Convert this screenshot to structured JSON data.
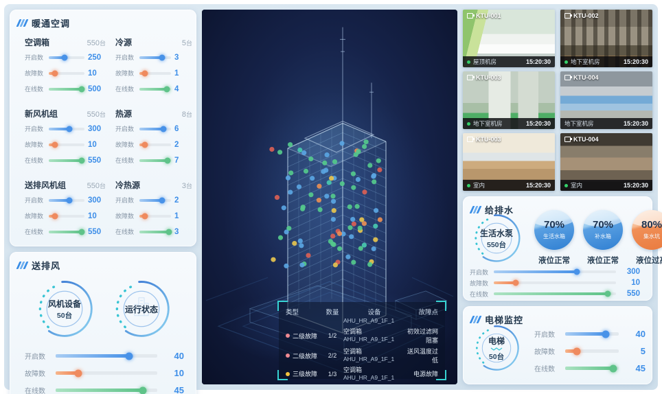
{
  "theme": {
    "accent": "#3a8ee6",
    "orange": "#ef8a5e",
    "green": "#5fc389",
    "teal": "#37d3d3",
    "value_blue": "#3d8ee8"
  },
  "hvac": {
    "title": "暖通空调",
    "unit": "台",
    "groups": [
      {
        "name": "空调箱",
        "total": "550",
        "sliders": [
          {
            "label": "开启数",
            "value": "250",
            "pct": 45,
            "type": "open"
          },
          {
            "label": "故障数",
            "value": "10",
            "pct": 18,
            "type": "fault"
          },
          {
            "label": "在线数",
            "value": "500",
            "pct": 93,
            "type": "online"
          }
        ]
      },
      {
        "name": "冷源",
        "total": "5",
        "sliders": [
          {
            "label": "开启数",
            "value": "3",
            "pct": 72,
            "type": "open"
          },
          {
            "label": "故障数",
            "value": "1",
            "pct": 18,
            "type": "fault"
          },
          {
            "label": "在线数",
            "value": "4",
            "pct": 86,
            "type": "online"
          }
        ]
      },
      {
        "name": "新风机组",
        "total": "550",
        "sliders": [
          {
            "label": "开启数",
            "value": "300",
            "pct": 58,
            "type": "open"
          },
          {
            "label": "故障数",
            "value": "10",
            "pct": 18,
            "type": "fault"
          },
          {
            "label": "在线数",
            "value": "550",
            "pct": 93,
            "type": "online"
          }
        ]
      },
      {
        "name": "热源",
        "total": "8",
        "sliders": [
          {
            "label": "开启数",
            "value": "6",
            "pct": 76,
            "type": "open"
          },
          {
            "label": "故障数",
            "value": "2",
            "pct": 18,
            "type": "fault"
          },
          {
            "label": "在线数",
            "value": "7",
            "pct": 90,
            "type": "online"
          }
        ]
      },
      {
        "name": "送排风机组",
        "total": "550",
        "sliders": [
          {
            "label": "开启数",
            "value": "300",
            "pct": 58,
            "type": "open"
          },
          {
            "label": "故障数",
            "value": "10",
            "pct": 18,
            "type": "fault"
          },
          {
            "label": "在线数",
            "value": "550",
            "pct": 93,
            "type": "online"
          }
        ]
      },
      {
        "name": "冷热源",
        "total": "3",
        "sliders": [
          {
            "label": "开启数",
            "value": "2",
            "pct": 72,
            "type": "open"
          },
          {
            "label": "故障数",
            "value": "1",
            "pct": 18,
            "type": "fault"
          },
          {
            "label": "在线数",
            "value": "3",
            "pct": 93,
            "type": "online"
          }
        ]
      }
    ]
  },
  "fans": {
    "title": "送排风",
    "gauges": [
      {
        "label": "风机设备",
        "sub": "50台"
      },
      {
        "label": "运行状态",
        "sub": ""
      }
    ],
    "sliders": [
      {
        "label": "开启数",
        "value": "40",
        "pct": 72,
        "type": "open"
      },
      {
        "label": "故障数",
        "value": "10",
        "pct": 22,
        "type": "fault"
      },
      {
        "label": "在线数",
        "value": "45",
        "pct": 86,
        "type": "online"
      }
    ]
  },
  "alarms": {
    "headers": [
      "类型",
      "数量",
      "设备",
      "故障点"
    ],
    "partial_device_id": "AHU_HR_A9_1F_1",
    "rows": [
      {
        "level": "二级故障",
        "dot": "#ef8a92",
        "qty": "1/2",
        "device": "空调箱",
        "device_id": "AHU_HR_A9_1F_1",
        "fault": "初效过滤网阻塞"
      },
      {
        "level": "二级故障",
        "dot": "#ef8a92",
        "qty": "2/2",
        "device": "空调箱",
        "device_id": "AHU_HR_A9_1F_1",
        "fault": "送风温度过低"
      },
      {
        "level": "三级故障",
        "dot": "#f2c23e",
        "qty": "1/3",
        "device": "空调箱",
        "device_id": "AHU_HR_A9_1F_1",
        "fault": "电源故障"
      }
    ]
  },
  "cameras": [
    {
      "id": "KTU-001",
      "location": "屋顶机房",
      "time": "15:20:30",
      "online": true
    },
    {
      "id": "KTU-002",
      "location": "地下室机房",
      "time": "15:20:30",
      "online": true
    },
    {
      "id": "KTU-003",
      "location": "地下室机房",
      "time": "15:20:30",
      "online": true
    },
    {
      "id": "KTU-004",
      "location": "地下室机房",
      "time": "15:20:30",
      "online": false
    },
    {
      "id": "KTU-003",
      "location": "室内",
      "time": "15:20:30",
      "online": true
    },
    {
      "id": "KTU-004",
      "location": "室内",
      "time": "15:20:30",
      "online": true
    }
  ],
  "water": {
    "title": "给排水",
    "gauge": {
      "label": "生活水泵",
      "sub": "550台"
    },
    "tanks": [
      {
        "pct": "70%",
        "name": "生活水箱",
        "status": "液位正常",
        "color": "blue"
      },
      {
        "pct": "70%",
        "name": "补水箱",
        "status": "液位正常",
        "color": "blue"
      },
      {
        "pct": "80%",
        "name": "集水坑",
        "status": "液位过高",
        "color": "orange"
      }
    ],
    "sliders": [
      {
        "label": "开启数",
        "value": "300",
        "pct": 68,
        "type": "open"
      },
      {
        "label": "故障数",
        "value": "10",
        "pct": 18,
        "type": "fault"
      },
      {
        "label": "在线数",
        "value": "550",
        "pct": 93,
        "type": "online"
      }
    ]
  },
  "elevator": {
    "title": "电梯监控",
    "gauge": {
      "label": "电梯",
      "sub": "50台"
    },
    "sliders": [
      {
        "label": "开启数",
        "value": "40",
        "pct": 75,
        "type": "open"
      },
      {
        "label": "故障数",
        "value": "5",
        "pct": 22,
        "type": "fault"
      },
      {
        "label": "在线数",
        "value": "45",
        "pct": 90,
        "type": "online"
      }
    ]
  }
}
